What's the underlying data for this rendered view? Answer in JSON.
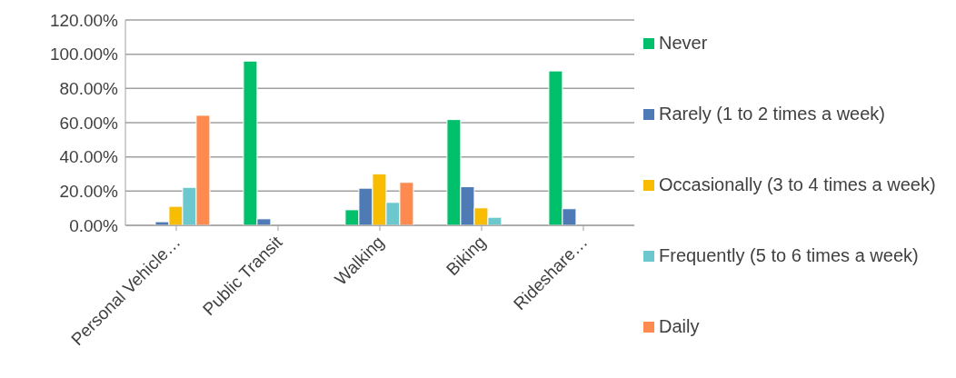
{
  "chart_data": {
    "type": "bar",
    "categories": [
      "Personal Vehicle…",
      "Public Transit",
      "Walking",
      "Biking",
      "Rideshare…"
    ],
    "series": [
      {
        "name": "Never",
        "color": "#00c06b",
        "values": [
          0,
          96.0,
          9.1,
          61.8,
          90.2
        ]
      },
      {
        "name": "Rarely (1 to 2 times a week)",
        "color": "#4e7ab5",
        "values": [
          2.1,
          3.8,
          21.7,
          22.6,
          9.7
        ]
      },
      {
        "name": "Occasionally (3 to 4 times a week)",
        "color": "#f8bd00",
        "values": [
          11.1,
          0,
          30.1,
          10.2,
          0
        ]
      },
      {
        "name": "Frequently (5 to 6 times a week)",
        "color": "#6cc8cc",
        "values": [
          22.2,
          0,
          13.4,
          4.7,
          0
        ]
      },
      {
        "name": "Daily",
        "color": "#ff8a4f",
        "values": [
          64.3,
          0,
          25.1,
          0,
          0
        ]
      }
    ],
    "ylim": [
      0,
      120
    ],
    "yticks": [
      {
        "value": 0,
        "label": "0.00%"
      },
      {
        "value": 20,
        "label": "20.00%"
      },
      {
        "value": 40,
        "label": "40.00%"
      },
      {
        "value": 60,
        "label": "60.00%"
      },
      {
        "value": 80,
        "label": "80.00%"
      },
      {
        "value": 100,
        "label": "100.00%"
      },
      {
        "value": 120,
        "label": "120.00%"
      }
    ],
    "grid": "y",
    "legend": "right"
  }
}
